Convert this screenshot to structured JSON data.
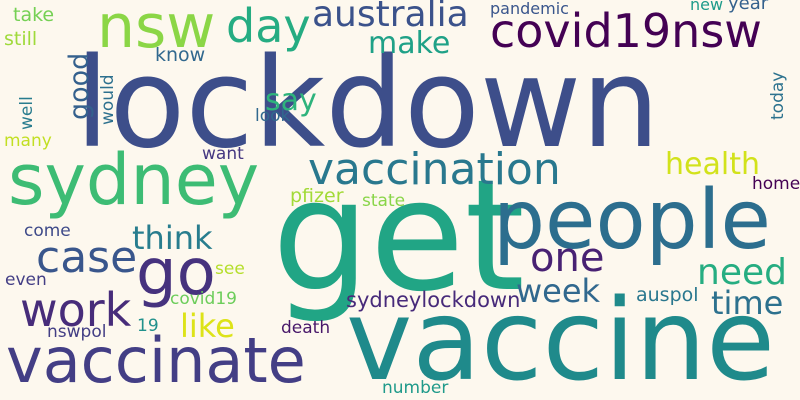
{
  "background": "#fdf8ee",
  "words": [
    {
      "name": "lockdown",
      "text": "lockdown",
      "color": "#3d4e8a"
    },
    {
      "name": "get",
      "text": "get",
      "color": "#21a585"
    },
    {
      "name": "vaccine",
      "text": "vaccine",
      "color": "#1f8a8b"
    },
    {
      "name": "people",
      "text": "people",
      "color": "#2c6e8e"
    },
    {
      "name": "sydney",
      "text": "sydney",
      "color": "#3dbc74"
    },
    {
      "name": "vaccinate",
      "text": "vaccinate",
      "color": "#433e85"
    },
    {
      "name": "vaccination",
      "text": "vaccination",
      "color": "#29788e"
    },
    {
      "name": "nsw",
      "text": "nsw",
      "color": "#8bd646"
    },
    {
      "name": "covid19nsw",
      "text": "covid19nsw",
      "color": "#440154"
    },
    {
      "name": "day",
      "text": "day",
      "color": "#25ac82"
    },
    {
      "name": "australia",
      "text": "australia",
      "color": "#3b528b"
    },
    {
      "name": "go",
      "text": "go",
      "color": "#46327e"
    },
    {
      "name": "one",
      "text": "one",
      "color": "#482173"
    },
    {
      "name": "case",
      "text": "case",
      "color": "#39568c"
    },
    {
      "name": "work",
      "text": "work",
      "color": "#472c7a"
    },
    {
      "name": "need",
      "text": "need",
      "color": "#26ad81"
    },
    {
      "name": "week",
      "text": "week",
      "color": "#31688e"
    },
    {
      "name": "time",
      "text": "time",
      "color": "#2d718e"
    },
    {
      "name": "health",
      "text": "health",
      "color": "#d2e21b"
    },
    {
      "name": "think",
      "text": "think",
      "color": "#287d8e"
    },
    {
      "name": "like",
      "text": "like",
      "color": "#dde318"
    },
    {
      "name": "make",
      "text": "make",
      "color": "#1fa187"
    },
    {
      "name": "good",
      "text": "good",
      "color": "#34608d"
    },
    {
      "name": "say",
      "text": "say",
      "color": "#2eb37c"
    },
    {
      "name": "sydneylockdown",
      "text": "sydneylockdown",
      "color": "#472a7a"
    },
    {
      "name": "auspol",
      "text": "auspol",
      "color": "#2a778e"
    },
    {
      "name": "pfizer",
      "text": "pfizer",
      "color": "#a2da37"
    },
    {
      "name": "state",
      "text": "state",
      "color": "#89d548"
    },
    {
      "name": "home",
      "text": "home",
      "color": "#440154"
    },
    {
      "name": "take",
      "text": "take",
      "color": "#75d054"
    },
    {
      "name": "still",
      "text": "still",
      "color": "#9fda3a"
    },
    {
      "name": "pandemic",
      "text": "pandemic",
      "color": "#39558c"
    },
    {
      "name": "know",
      "text": "know",
      "color": "#31688e"
    },
    {
      "name": "would",
      "text": "would",
      "color": "#2d708e"
    },
    {
      "name": "new",
      "text": "new",
      "color": "#1e9b8a"
    },
    {
      "name": "year",
      "text": "year",
      "color": "#34618d"
    },
    {
      "name": "well",
      "text": "well",
      "color": "#287c8e"
    },
    {
      "name": "many",
      "text": "many",
      "color": "#c2df23"
    },
    {
      "name": "look",
      "text": "look",
      "color": "#31688e"
    },
    {
      "name": "want",
      "text": "want",
      "color": "#453781"
    },
    {
      "name": "today",
      "text": "today",
      "color": "#2c728e"
    },
    {
      "name": "come",
      "text": "come",
      "color": "#3e4a89"
    },
    {
      "name": "even",
      "text": "even",
      "color": "#433e85"
    },
    {
      "name": "see",
      "text": "see",
      "color": "#b5de2b"
    },
    {
      "name": "covid19",
      "text": "covid19",
      "color": "#6ccd5a"
    },
    {
      "name": "nswpol",
      "text": "nswpol",
      "color": "#433e85"
    },
    {
      "name": "19",
      "text": "19",
      "color": "#21918c"
    },
    {
      "name": "death",
      "text": "death",
      "color": "#48186a"
    },
    {
      "name": "number",
      "text": "number",
      "color": "#1f9a8a"
    }
  ]
}
